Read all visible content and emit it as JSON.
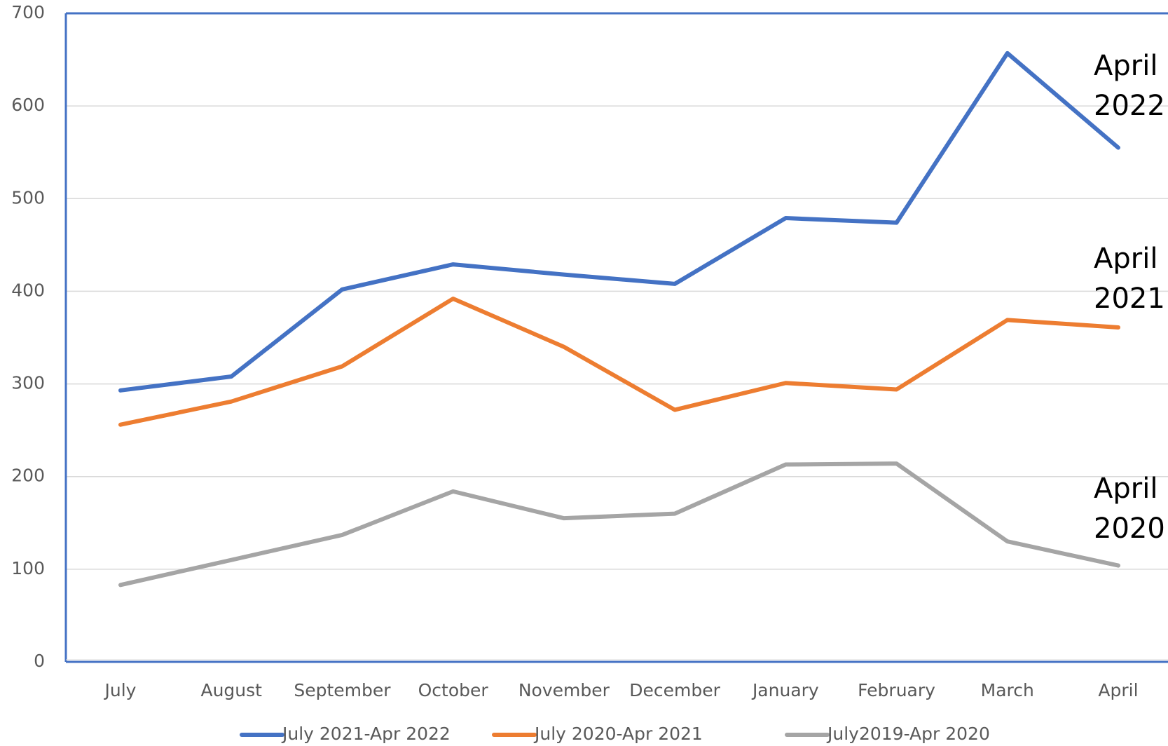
{
  "chart_data": {
    "type": "line",
    "categories": [
      "July",
      "August",
      "September",
      "October",
      "November",
      "December",
      "January",
      "February",
      "March",
      "April"
    ],
    "series": [
      {
        "name": "July 2021-Apr 2022",
        "color": "#4472c4",
        "values": [
          293,
          308,
          402,
          429,
          418,
          408,
          479,
          474,
          657,
          555
        ]
      },
      {
        "name": "July 2020-Apr 2021",
        "color": "#ed7d31",
        "values": [
          256,
          281,
          319,
          392,
          340,
          272,
          301,
          294,
          369,
          361
        ]
      },
      {
        "name": "July2019-Apr 2020",
        "color": "#a5a5a5",
        "values": [
          83,
          110,
          137,
          184,
          155,
          160,
          213,
          214,
          130,
          104
        ]
      }
    ],
    "ylim": [
      0,
      700
    ],
    "yticks": [
      0,
      100,
      200,
      300,
      400,
      500,
      600,
      700
    ],
    "grid": true,
    "annotations": [
      {
        "lines": [
          "April",
          "2022"
        ]
      },
      {
        "lines": [
          "April",
          "2021"
        ]
      },
      {
        "lines": [
          "April",
          "2020"
        ]
      }
    ],
    "legend": "bottom"
  }
}
